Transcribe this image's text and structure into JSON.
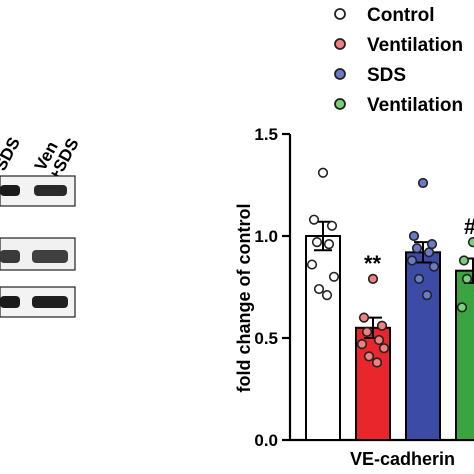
{
  "blot": {
    "lane_labels": [
      "SDS",
      "Ven\n+SDS"
    ],
    "band_rows": 3
  },
  "chart_data": {
    "type": "bar",
    "categories": [
      "VE-cadherin"
    ],
    "series": [
      {
        "name": "Control",
        "value": 1.0,
        "sem": 0.07,
        "points": [
          1.31,
          1.08,
          1.05,
          0.97,
          0.96,
          0.86,
          0.8,
          0.74,
          0.71
        ],
        "fill": "#ffffff",
        "marker": "#ffffff"
      },
      {
        "name": "Ventilation",
        "value": 0.55,
        "sem": 0.05,
        "points": [
          0.79,
          0.6,
          0.56,
          0.53,
          0.49,
          0.47,
          0.45,
          0.41,
          0.38
        ],
        "fill": "#e8262b",
        "marker": "#f08080"
      },
      {
        "name": "SDS",
        "value": 0.92,
        "sem": 0.05,
        "points": [
          1.26,
          1.0,
          0.96,
          0.94,
          0.92,
          0.88,
          0.85,
          0.79,
          0.71
        ],
        "fill": "#3b4ba6",
        "marker": "#6a7ac8"
      },
      {
        "name": "Ventilation",
        "value": 0.83,
        "sem": 0.06,
        "points": [
          0.97,
          0.88,
          0.83,
          0.79,
          0.73,
          0.65
        ],
        "fill": "#3aa540",
        "marker": "#7acf7a"
      }
    ],
    "significance": [
      "",
      "**",
      "",
      "#"
    ],
    "ylabel": "fold change of control",
    "xlabel": "VE-cadherin",
    "ylim": [
      0,
      1.5
    ],
    "yticks": [
      "0.0",
      "0.5",
      "1.0",
      "1.5"
    ],
    "legend": {
      "placement": "top-right",
      "entries": [
        "Control",
        "Ventilation",
        "SDS",
        "Ventilation"
      ]
    },
    "colors": {
      "Control": "#ffffff",
      "Ventilation": "#e8262b",
      "SDS": "#3b4ba6",
      "Ventilation+SDS": "#3aa540"
    }
  }
}
